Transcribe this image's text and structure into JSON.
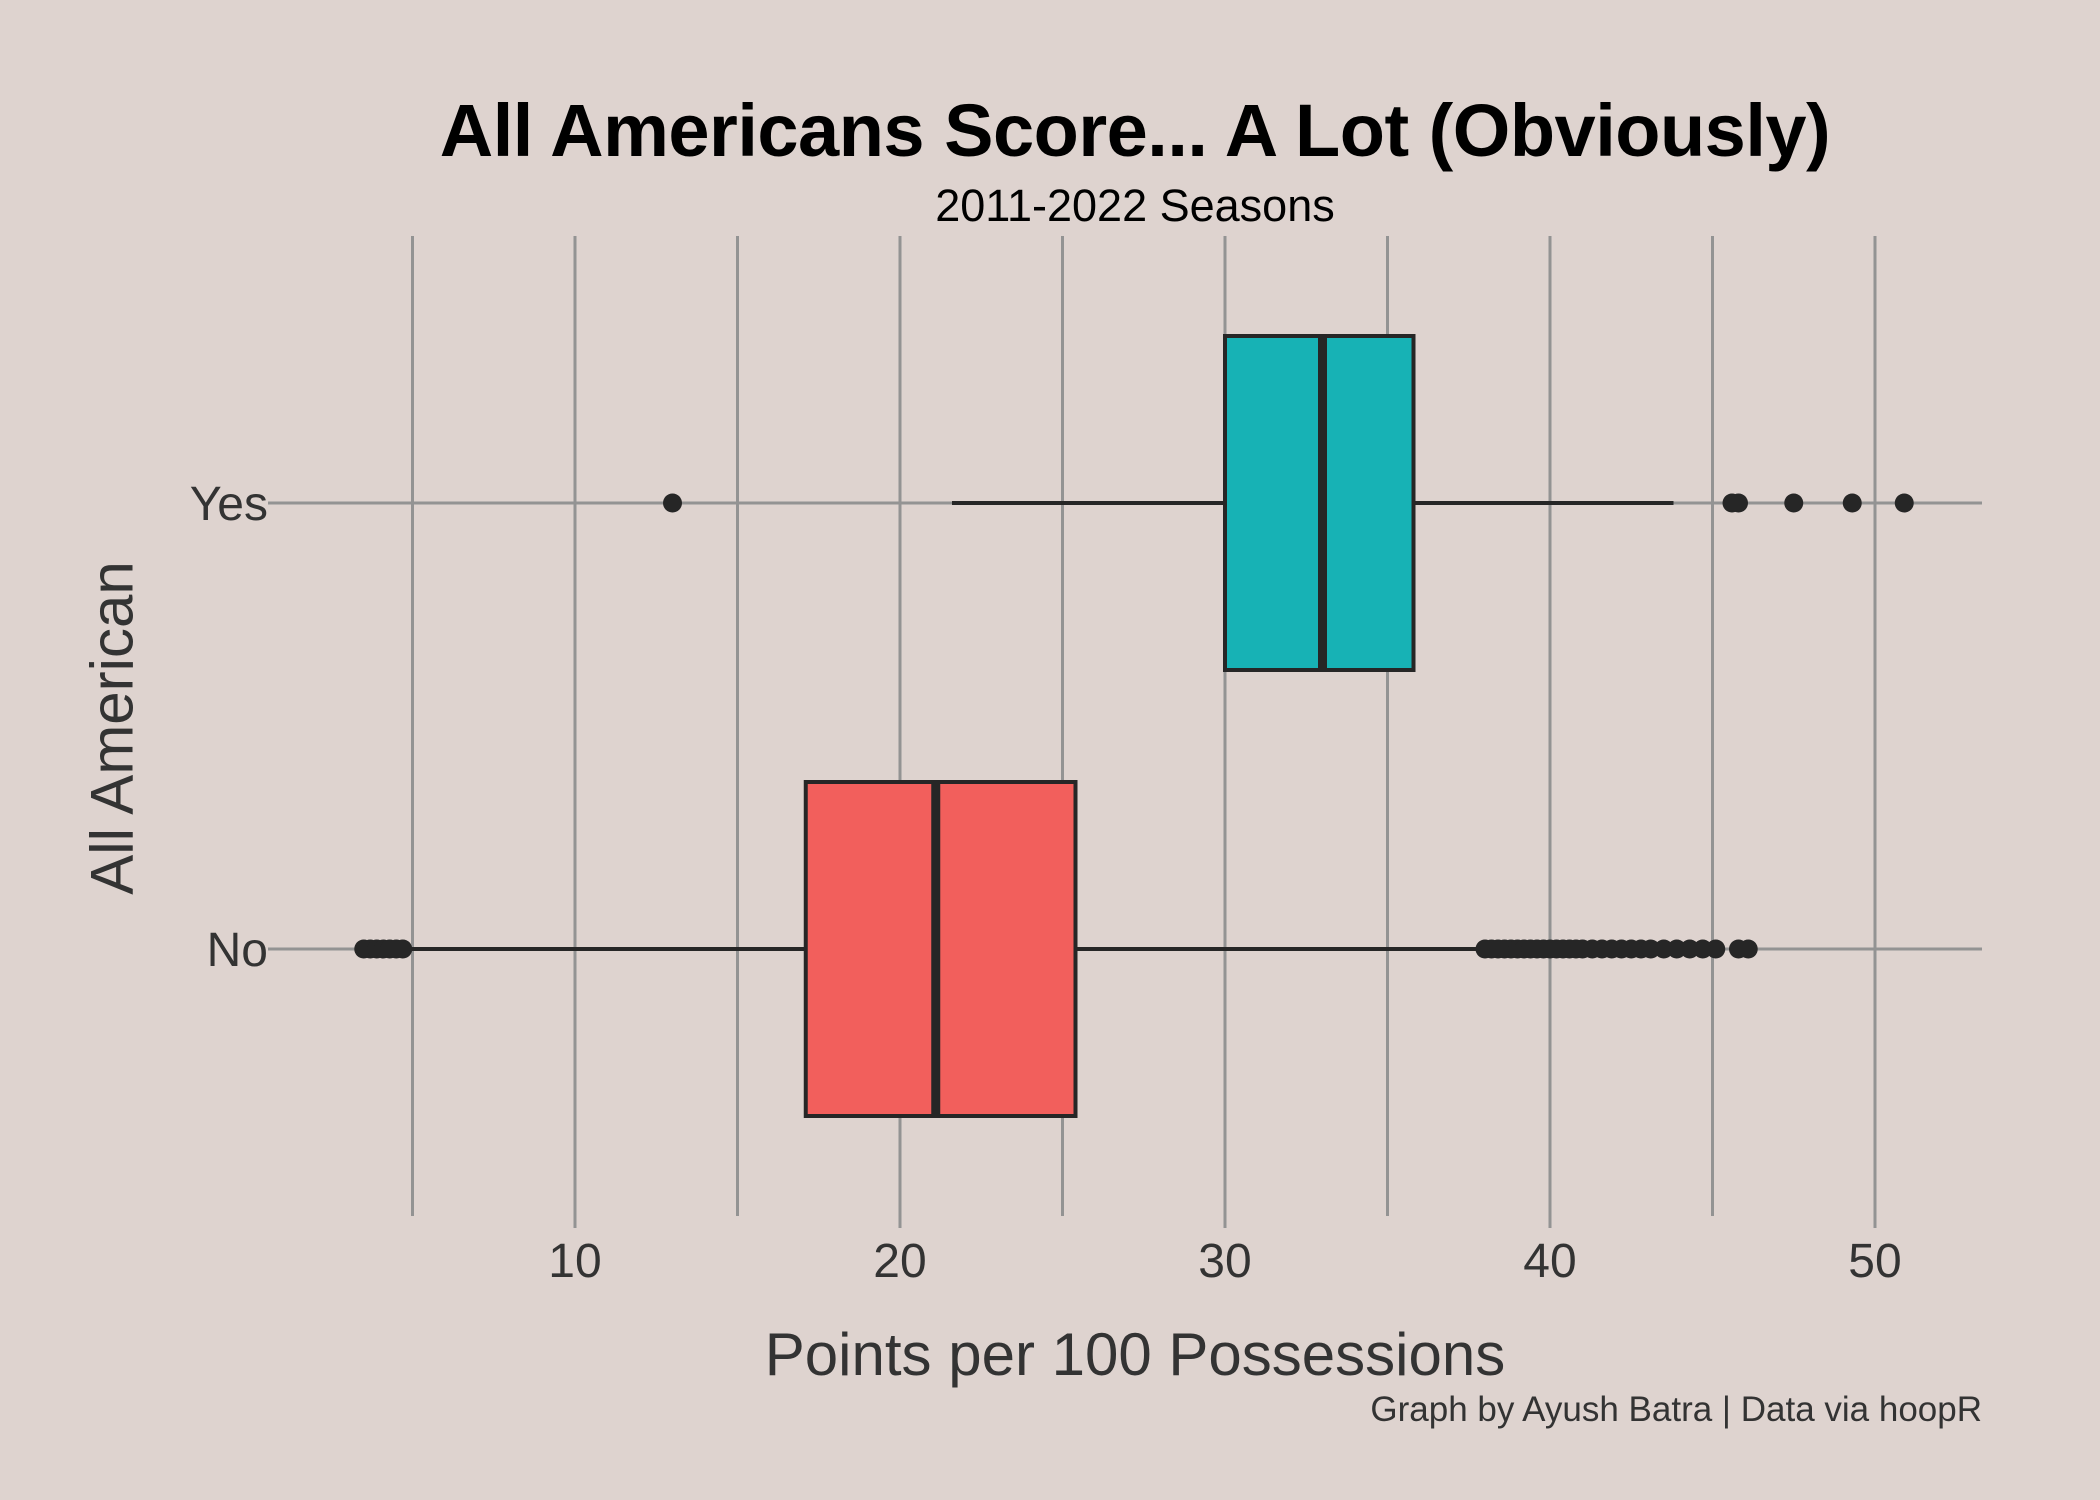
{
  "title": "All Americans Score... A Lot (Obviously)",
  "subtitle": "2011-2022 Seasons",
  "caption": "Graph by Ayush Batra | Data via hoopR",
  "colors": {
    "background": "#DED3CF",
    "gridline": "#939393",
    "outline": "#262626",
    "no_fill": "#F25F5C",
    "yes_fill": "#17B2B5",
    "text": "#333333"
  },
  "chart_data": {
    "type": "boxplot",
    "orientation": "horizontal",
    "title": "All Americans Score... A Lot (Obviously)",
    "subtitle": "2011-2022 Seasons",
    "xlabel": "Points per 100 Possessions",
    "ylabel": "All American",
    "xlim": [
      0,
      53
    ],
    "x_ticks": [
      10,
      20,
      30,
      40,
      50
    ],
    "x_minor_gridlines": [
      5,
      15,
      25,
      35,
      45
    ],
    "grid": true,
    "legend": "none",
    "categories": [
      "No",
      "Yes"
    ],
    "series": [
      {
        "name": "No",
        "color": "#F25F5C",
        "whisker_low": 4.8,
        "q1": 17.1,
        "median": 21.1,
        "q3": 25.4,
        "whisker_high": 37.9,
        "outliers_low": [
          3.5,
          3.7,
          3.9,
          4.1,
          4.3,
          4.5,
          4.7
        ],
        "outliers_high": [
          38.0,
          38.2,
          38.4,
          38.6,
          38.8,
          39.0,
          39.2,
          39.4,
          39.6,
          39.8,
          40.0,
          40.2,
          40.4,
          40.6,
          40.8,
          41.0,
          41.3,
          41.6,
          41.9,
          42.2,
          42.5,
          42.8,
          43.1,
          43.5,
          43.9,
          44.3,
          44.7,
          45.1,
          45.8,
          46.1
        ]
      },
      {
        "name": "Yes",
        "color": "#17B2B5",
        "whisker_low": 21.6,
        "q1": 30.0,
        "median": 33.0,
        "q3": 35.8,
        "whisker_high": 43.8,
        "outliers_low": [
          13.0
        ],
        "outliers_high": [
          45.6,
          45.8,
          47.5,
          49.3,
          50.9
        ]
      }
    ]
  }
}
